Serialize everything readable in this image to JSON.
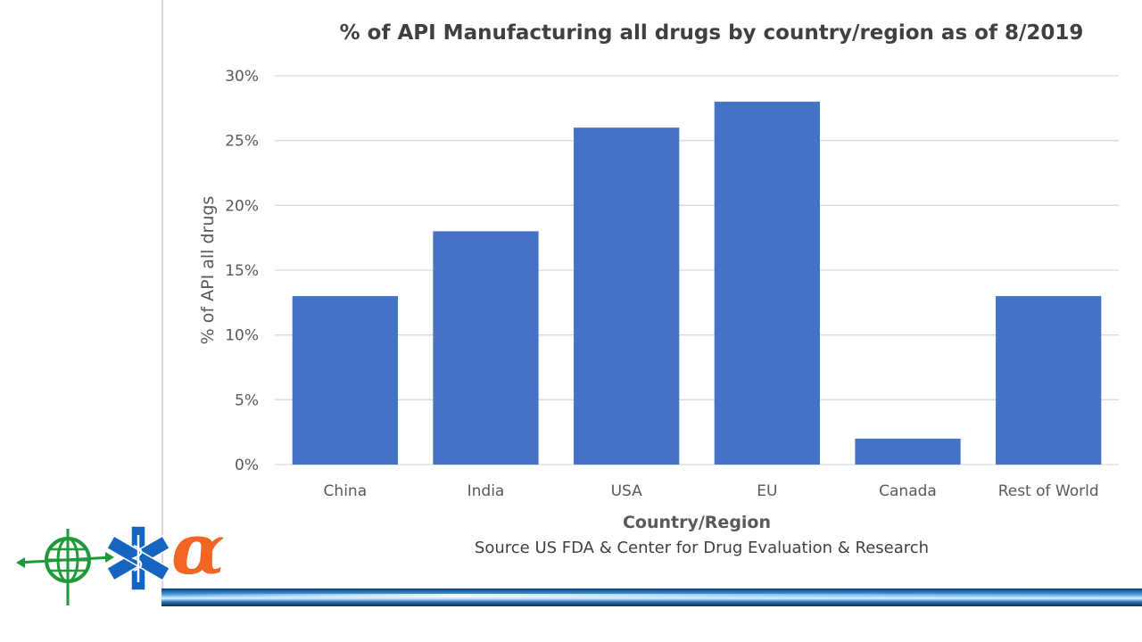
{
  "chart_data": {
    "type": "bar",
    "title": "% of API Manufacturing all drugs by country/region as of 8/2019",
    "xlabel": "Country/Region",
    "ylabel": "% of API all drugs",
    "categories": [
      "China",
      "India",
      "USA",
      "EU",
      "Canada",
      "Rest of World"
    ],
    "values": [
      13,
      18,
      26,
      28,
      2,
      13
    ],
    "ylim": [
      0,
      30
    ],
    "yticks": [
      "0%",
      "5%",
      "10%",
      "15%",
      "20%",
      "25%",
      "30%"
    ],
    "grid": true,
    "bar_color": "#4472C4",
    "note": "Source US FDA & Center for Drug Evaluation & Research"
  },
  "logos": {
    "globe_icon": "green-globe-icon",
    "star_of_life_icon": "blue-star-of-life-icon",
    "alpha_glyph": "α",
    "colors": {
      "globe": "#1f9a3a",
      "star": "#1565c0",
      "alpha": "#f26522"
    }
  }
}
